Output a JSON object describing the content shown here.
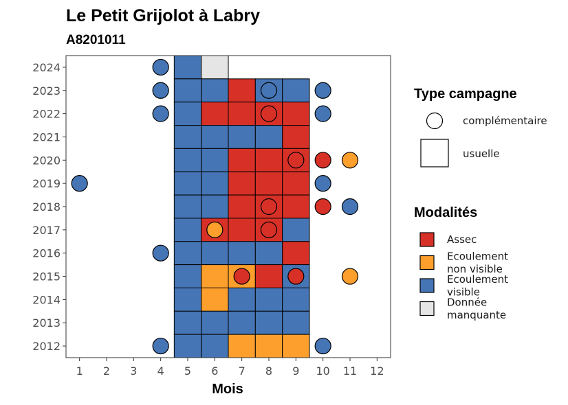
{
  "chart_data": {
    "type": "heatmap",
    "title": "Le Petit Grijolot à Labry",
    "subtitle": "A8201011",
    "xlabel": "Mois",
    "ylabel": "",
    "x_ticks": [
      1,
      2,
      3,
      4,
      5,
      6,
      7,
      8,
      9,
      10,
      11,
      12
    ],
    "y_ticks": [
      2012,
      2013,
      2014,
      2015,
      2016,
      2017,
      2018,
      2019,
      2020,
      2021,
      2022,
      2023,
      2024
    ],
    "xlim": [
      0.5,
      12.5
    ],
    "ylim": [
      2011.5,
      2024.5
    ],
    "colors": {
      "Assec": "#d73027",
      "Ecoulement non visible": "#fd9f2d",
      "Ecoulement visible": "#4575b4",
      "Donnée manquante": "#e5e5e5"
    },
    "legend_type": {
      "title": "Type campagne",
      "entries": [
        {
          "key": "complementaire",
          "label": "complémentaire"
        },
        {
          "key": "usuelle",
          "label": "usuelle"
        }
      ]
    },
    "legend_modalites": {
      "title": "Modalités",
      "entries": [
        {
          "key": "Assec",
          "lines": [
            "Assec"
          ]
        },
        {
          "key": "Ecoulement non visible",
          "lines": [
            "Ecoulement",
            "non visible"
          ]
        },
        {
          "key": "Ecoulement visible",
          "lines": [
            "Ecoulement",
            "visible"
          ]
        },
        {
          "key": "Donnée manquante",
          "lines": [
            "Donnée",
            "manquante"
          ]
        }
      ]
    },
    "usuelle": [
      {
        "year": 2024,
        "month": 5,
        "value": "Ecoulement visible"
      },
      {
        "year": 2024,
        "month": 6,
        "value": "Donnée manquante"
      },
      {
        "year": 2023,
        "month": 5,
        "value": "Ecoulement visible"
      },
      {
        "year": 2023,
        "month": 6,
        "value": "Ecoulement visible"
      },
      {
        "year": 2023,
        "month": 7,
        "value": "Assec"
      },
      {
        "year": 2023,
        "month": 8,
        "value": "Ecoulement visible"
      },
      {
        "year": 2023,
        "month": 9,
        "value": "Ecoulement visible"
      },
      {
        "year": 2022,
        "month": 5,
        "value": "Ecoulement visible"
      },
      {
        "year": 2022,
        "month": 6,
        "value": "Assec"
      },
      {
        "year": 2022,
        "month": 7,
        "value": "Assec"
      },
      {
        "year": 2022,
        "month": 8,
        "value": "Assec"
      },
      {
        "year": 2022,
        "month": 9,
        "value": "Assec"
      },
      {
        "year": 2021,
        "month": 5,
        "value": "Ecoulement visible"
      },
      {
        "year": 2021,
        "month": 6,
        "value": "Ecoulement visible"
      },
      {
        "year": 2021,
        "month": 7,
        "value": "Ecoulement visible"
      },
      {
        "year": 2021,
        "month": 8,
        "value": "Ecoulement visible"
      },
      {
        "year": 2021,
        "month": 9,
        "value": "Assec"
      },
      {
        "year": 2020,
        "month": 5,
        "value": "Ecoulement visible"
      },
      {
        "year": 2020,
        "month": 6,
        "value": "Ecoulement visible"
      },
      {
        "year": 2020,
        "month": 7,
        "value": "Assec"
      },
      {
        "year": 2020,
        "month": 8,
        "value": "Assec"
      },
      {
        "year": 2020,
        "month": 9,
        "value": "Assec"
      },
      {
        "year": 2019,
        "month": 5,
        "value": "Ecoulement visible"
      },
      {
        "year": 2019,
        "month": 6,
        "value": "Ecoulement visible"
      },
      {
        "year": 2019,
        "month": 7,
        "value": "Assec"
      },
      {
        "year": 2019,
        "month": 8,
        "value": "Assec"
      },
      {
        "year": 2019,
        "month": 9,
        "value": "Assec"
      },
      {
        "year": 2018,
        "month": 5,
        "value": "Ecoulement visible"
      },
      {
        "year": 2018,
        "month": 6,
        "value": "Ecoulement visible"
      },
      {
        "year": 2018,
        "month": 7,
        "value": "Assec"
      },
      {
        "year": 2018,
        "month": 8,
        "value": "Assec"
      },
      {
        "year": 2018,
        "month": 9,
        "value": "Assec"
      },
      {
        "year": 2017,
        "month": 5,
        "value": "Ecoulement visible"
      },
      {
        "year": 2017,
        "month": 6,
        "value": "Assec"
      },
      {
        "year": 2017,
        "month": 7,
        "value": "Assec"
      },
      {
        "year": 2017,
        "month": 8,
        "value": "Assec"
      },
      {
        "year": 2017,
        "month": 9,
        "value": "Ecoulement visible"
      },
      {
        "year": 2016,
        "month": 5,
        "value": "Ecoulement visible"
      },
      {
        "year": 2016,
        "month": 6,
        "value": "Ecoulement visible"
      },
      {
        "year": 2016,
        "month": 7,
        "value": "Ecoulement visible"
      },
      {
        "year": 2016,
        "month": 8,
        "value": "Ecoulement visible"
      },
      {
        "year": 2016,
        "month": 9,
        "value": "Assec"
      },
      {
        "year": 2015,
        "month": 5,
        "value": "Ecoulement visible"
      },
      {
        "year": 2015,
        "month": 6,
        "value": "Ecoulement non visible"
      },
      {
        "year": 2015,
        "month": 7,
        "value": "Ecoulement non visible"
      },
      {
        "year": 2015,
        "month": 8,
        "value": "Assec"
      },
      {
        "year": 2015,
        "month": 9,
        "value": "Ecoulement visible"
      },
      {
        "year": 2014,
        "month": 5,
        "value": "Ecoulement visible"
      },
      {
        "year": 2014,
        "month": 6,
        "value": "Ecoulement non visible"
      },
      {
        "year": 2014,
        "month": 7,
        "value": "Ecoulement visible"
      },
      {
        "year": 2014,
        "month": 8,
        "value": "Ecoulement visible"
      },
      {
        "year": 2014,
        "month": 9,
        "value": "Ecoulement visible"
      },
      {
        "year": 2013,
        "month": 5,
        "value": "Ecoulement visible"
      },
      {
        "year": 2013,
        "month": 6,
        "value": "Ecoulement visible"
      },
      {
        "year": 2013,
        "month": 7,
        "value": "Ecoulement visible"
      },
      {
        "year": 2013,
        "month": 8,
        "value": "Ecoulement visible"
      },
      {
        "year": 2013,
        "month": 9,
        "value": "Ecoulement visible"
      },
      {
        "year": 2012,
        "month": 5,
        "value": "Ecoulement visible"
      },
      {
        "year": 2012,
        "month": 6,
        "value": "Ecoulement visible"
      },
      {
        "year": 2012,
        "month": 7,
        "value": "Ecoulement non visible"
      },
      {
        "year": 2012,
        "month": 8,
        "value": "Ecoulement non visible"
      },
      {
        "year": 2012,
        "month": 9,
        "value": "Ecoulement non visible"
      }
    ],
    "complementaire": [
      {
        "year": 2024,
        "month": 4,
        "value": "Ecoulement visible"
      },
      {
        "year": 2023,
        "month": 4,
        "value": "Ecoulement visible"
      },
      {
        "year": 2023,
        "month": 8,
        "value": "Ecoulement visible"
      },
      {
        "year": 2023,
        "month": 10,
        "value": "Ecoulement visible"
      },
      {
        "year": 2022,
        "month": 4,
        "value": "Ecoulement visible"
      },
      {
        "year": 2022,
        "month": 8,
        "value": "Assec"
      },
      {
        "year": 2022,
        "month": 10,
        "value": "Ecoulement visible"
      },
      {
        "year": 2020,
        "month": 9,
        "value": "Assec"
      },
      {
        "year": 2020,
        "month": 10,
        "value": "Assec"
      },
      {
        "year": 2020,
        "month": 11,
        "value": "Ecoulement non visible"
      },
      {
        "year": 2019,
        "month": 1,
        "value": "Ecoulement visible"
      },
      {
        "year": 2019,
        "month": 10,
        "value": "Ecoulement visible"
      },
      {
        "year": 2018,
        "month": 8,
        "value": "Assec"
      },
      {
        "year": 2018,
        "month": 10,
        "value": "Assec"
      },
      {
        "year": 2018,
        "month": 11,
        "value": "Ecoulement visible"
      },
      {
        "year": 2017,
        "month": 6,
        "value": "Ecoulement non visible"
      },
      {
        "year": 2017,
        "month": 8,
        "value": "Assec"
      },
      {
        "year": 2016,
        "month": 4,
        "value": "Ecoulement visible"
      },
      {
        "year": 2015,
        "month": 7,
        "value": "Assec"
      },
      {
        "year": 2015,
        "month": 9,
        "value": "Assec"
      },
      {
        "year": 2015,
        "month": 11,
        "value": "Ecoulement non visible"
      },
      {
        "year": 2012,
        "month": 4,
        "value": "Ecoulement visible"
      },
      {
        "year": 2012,
        "month": 10,
        "value": "Ecoulement visible"
      }
    ]
  }
}
